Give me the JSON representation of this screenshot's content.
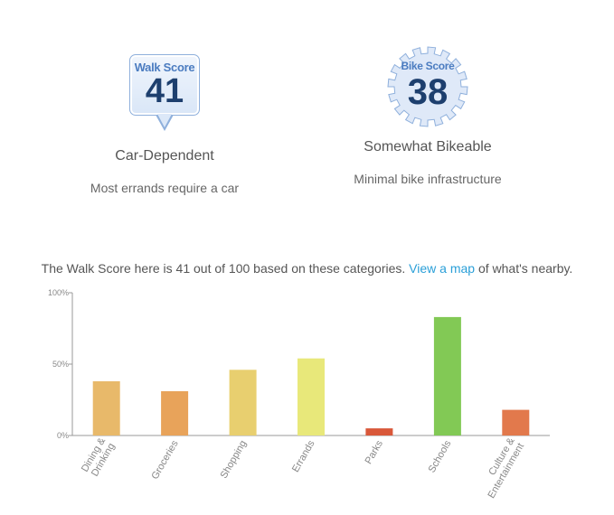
{
  "walk_score": {
    "badge_label": "Walk Score",
    "value": "41",
    "description": "Car-Dependent",
    "detail": "Most errands require a car"
  },
  "bike_score": {
    "badge_label": "Bike Score",
    "value": "38",
    "description": "Somewhat Bikeable",
    "detail": "Minimal bike infrastructure"
  },
  "summary": {
    "text_before": "The Walk Score here is 41 out of 100 based on these categories. ",
    "link_text": "View a map",
    "text_after": " of what's nearby."
  },
  "colors": {
    "badge_text": "#1d3f6e",
    "link": "#2a9fd8"
  },
  "chart_data": {
    "type": "bar",
    "categories": [
      [
        "Dining &",
        "Drinking"
      ],
      [
        "Groceries"
      ],
      [
        "Shopping"
      ],
      [
        "Errands"
      ],
      [
        "Parks"
      ],
      [
        "Schools"
      ],
      [
        "Culture &",
        "Entertainment"
      ]
    ],
    "values": [
      38,
      31,
      46,
      54,
      5,
      83,
      18
    ],
    "colors": [
      "#e8b96a",
      "#e8a35a",
      "#e8cf6f",
      "#e8e87a",
      "#d9583a",
      "#82c955",
      "#e2794c"
    ],
    "yticks": [
      0,
      50,
      100
    ],
    "ytick_labels": [
      "0%",
      "50%",
      "100%"
    ],
    "ylim": [
      0,
      100
    ],
    "title": "",
    "xlabel": "",
    "ylabel": ""
  }
}
